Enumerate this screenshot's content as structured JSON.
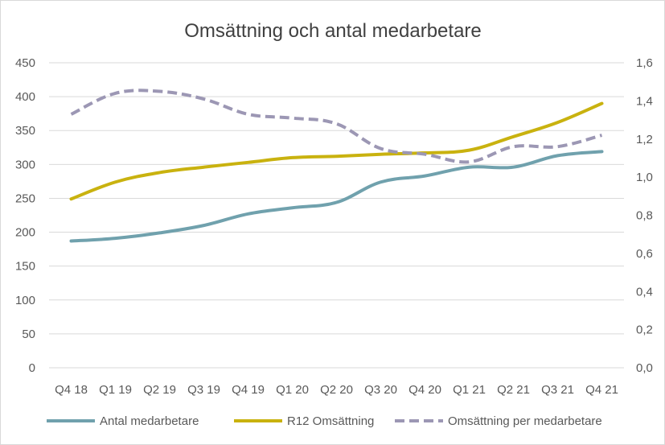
{
  "chart_data": {
    "type": "line",
    "title": "Omsättning och antal medarbetare",
    "xlabel": "",
    "ylabel": "",
    "categories": [
      "Q4 18",
      "Q1 19",
      "Q2 19",
      "Q3 19",
      "Q4 19",
      "Q1 20",
      "Q2 20",
      "Q3 20",
      "Q4 20",
      "Q1 21",
      "Q2 21",
      "Q3 21",
      "Q4 21"
    ],
    "ylim": [
      0,
      450
    ],
    "y_ticks": [
      "0",
      "50",
      "100",
      "150",
      "200",
      "250",
      "300",
      "350",
      "400",
      "450"
    ],
    "y2lim": [
      0,
      1.6
    ],
    "y2_ticks": [
      "0,0",
      "0,2",
      "0,4",
      "0,6",
      "0,8",
      "1,0",
      "1,2",
      "1,4",
      "1,6"
    ],
    "grid": true,
    "legend_position": "bottom",
    "series": [
      {
        "name": "Antal medarbetare",
        "axis": "left",
        "color": "#70a1ad",
        "dashed": false,
        "values": [
          187,
          191,
          199,
          210,
          227,
          236,
          244,
          274,
          283,
          296,
          296,
          313,
          319
        ]
      },
      {
        "name": "R12 Omsättning",
        "axis": "left",
        "color": "#c9b20f",
        "dashed": false,
        "values": [
          249,
          274,
          288,
          296,
          303,
          310,
          312,
          315,
          317,
          321,
          341,
          362,
          390
        ]
      },
      {
        "name": "Omsättning per medarbetare",
        "axis": "right",
        "color": "#9c97b4",
        "dashed": true,
        "values": [
          1.33,
          1.44,
          1.45,
          1.41,
          1.33,
          1.31,
          1.28,
          1.15,
          1.12,
          1.08,
          1.16,
          1.16,
          1.22
        ]
      }
    ]
  }
}
